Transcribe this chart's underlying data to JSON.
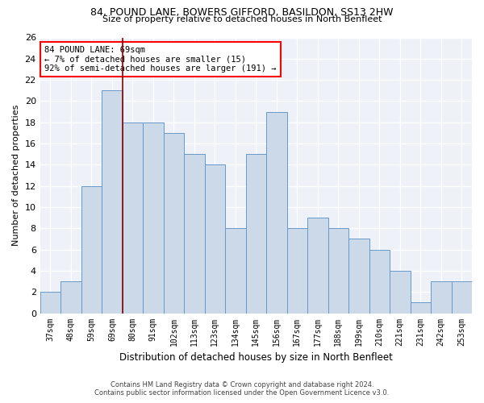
{
  "title1": "84, POUND LANE, BOWERS GIFFORD, BASILDON, SS13 2HW",
  "title2": "Size of property relative to detached houses in North Benfleet",
  "xlabel": "Distribution of detached houses by size in North Benfleet",
  "ylabel": "Number of detached properties",
  "categories": [
    "37sqm",
    "48sqm",
    "59sqm",
    "69sqm",
    "80sqm",
    "91sqm",
    "102sqm",
    "113sqm",
    "123sqm",
    "134sqm",
    "145sqm",
    "156sqm",
    "167sqm",
    "177sqm",
    "188sqm",
    "199sqm",
    "210sqm",
    "221sqm",
    "231sqm",
    "242sqm",
    "253sqm"
  ],
  "values": [
    2,
    3,
    12,
    21,
    18,
    18,
    17,
    15,
    14,
    8,
    15,
    19,
    8,
    9,
    8,
    7,
    6,
    4,
    1,
    3,
    3
  ],
  "bar_color": "#ccd9e8",
  "bar_edge_color": "#6699cc",
  "vline_index": 3,
  "vline_color": "#880000",
  "annotation_text_line1": "84 POUND LANE: 69sqm",
  "annotation_text_line2": "← 7% of detached houses are smaller (15)",
  "annotation_text_line3": "92% of semi-detached houses are larger (191) →",
  "ylim": [
    0,
    26
  ],
  "yticks": [
    0,
    2,
    4,
    6,
    8,
    10,
    12,
    14,
    16,
    18,
    20,
    22,
    24,
    26
  ],
  "footer1": "Contains HM Land Registry data © Crown copyright and database right 2024.",
  "footer2": "Contains public sector information licensed under the Open Government Licence v3.0.",
  "bg_color": "#ffffff",
  "plot_bg_color": "#eef2f8",
  "grid_color": "#ffffff"
}
